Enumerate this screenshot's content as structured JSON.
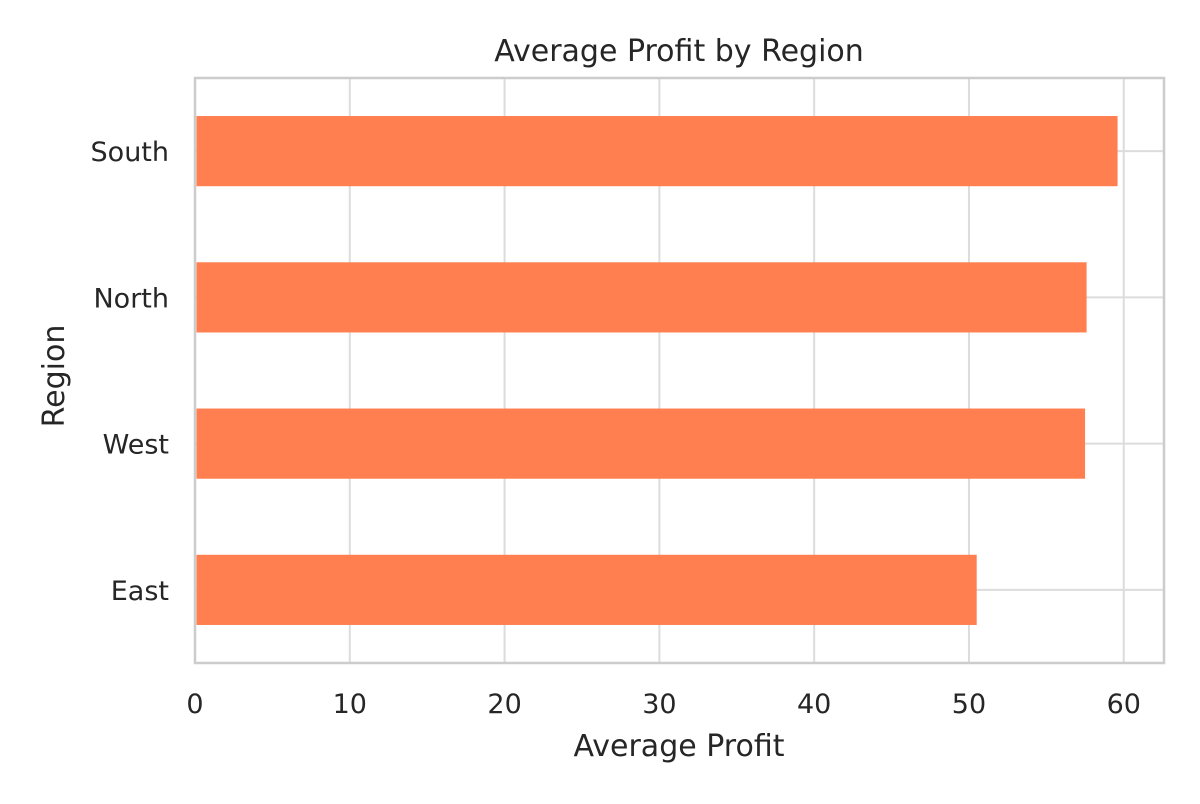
{
  "chart_data": {
    "type": "bar",
    "orientation": "horizontal",
    "title": "Average Profit by Region",
    "xlabel": "Average Profit",
    "ylabel": "Region",
    "categories": [
      "South",
      "North",
      "West",
      "East"
    ],
    "values": [
      59.6,
      57.6,
      57.5,
      50.5
    ],
    "xlim": [
      0,
      62.6
    ],
    "xticks": [
      0,
      10,
      20,
      30,
      40,
      50,
      60
    ],
    "grid": true,
    "bar_color": "#ff7f50",
    "grid_color": "#dcdcdc",
    "axis_color": "#cccccc",
    "text_color": "#262626"
  }
}
